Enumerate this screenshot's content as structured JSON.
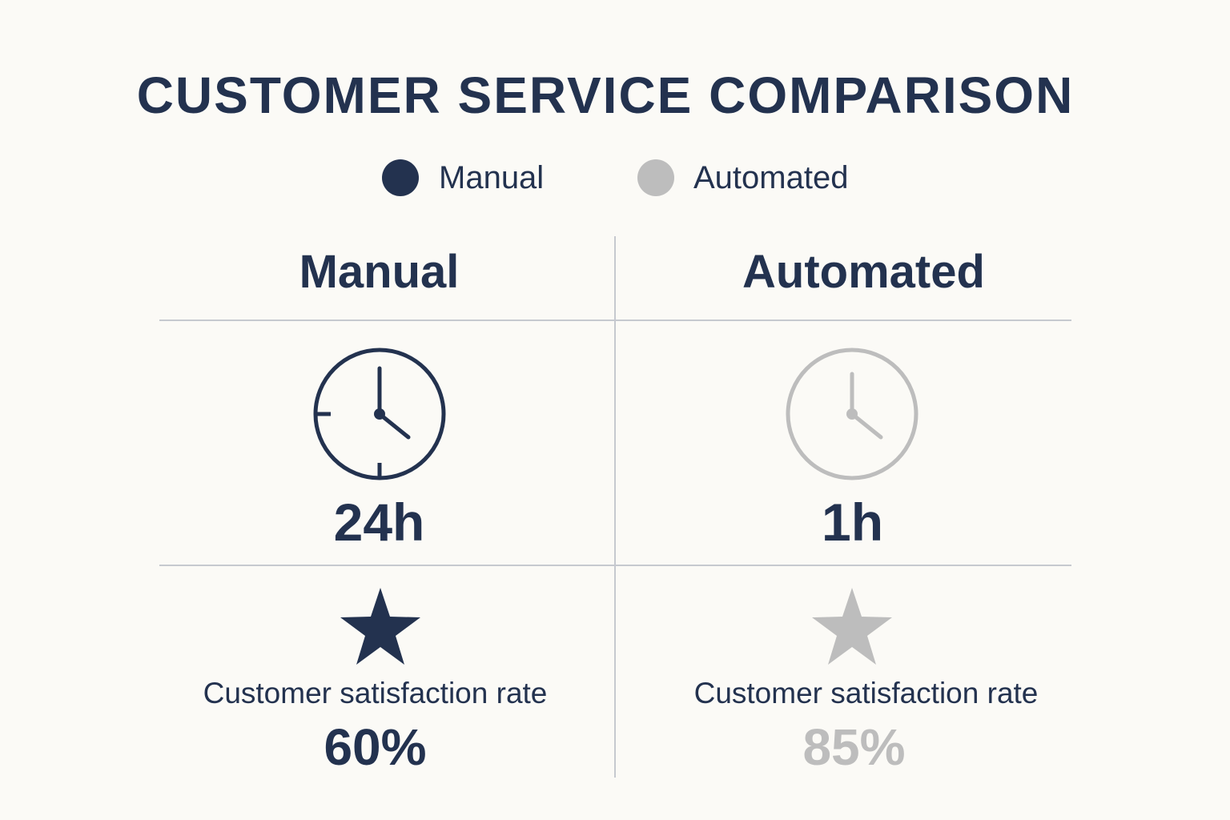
{
  "title": "CUSTOMER SERVICE COMPARISON",
  "colors": {
    "manual": "#23324f",
    "automated": "#bdbdbd",
    "divider": "#c6c9cf",
    "background": "#fbfaf6"
  },
  "legend": [
    {
      "label": "Manual",
      "color": "#23324f"
    },
    {
      "label": "Automated",
      "color": "#bdbdbd"
    }
  ],
  "columns": [
    {
      "header": "Manual",
      "response_time": "24h",
      "time_icon": "clock-icon",
      "rating_icon": "star-icon",
      "rate_label": "Customer satisfaction rate",
      "rate_value": "60%"
    },
    {
      "header": "Automated",
      "response_time": "1h",
      "time_icon": "clock-icon",
      "rating_icon": "star-icon",
      "rate_label": "Customer satisfaction rate",
      "rate_value": "85%"
    }
  ]
}
